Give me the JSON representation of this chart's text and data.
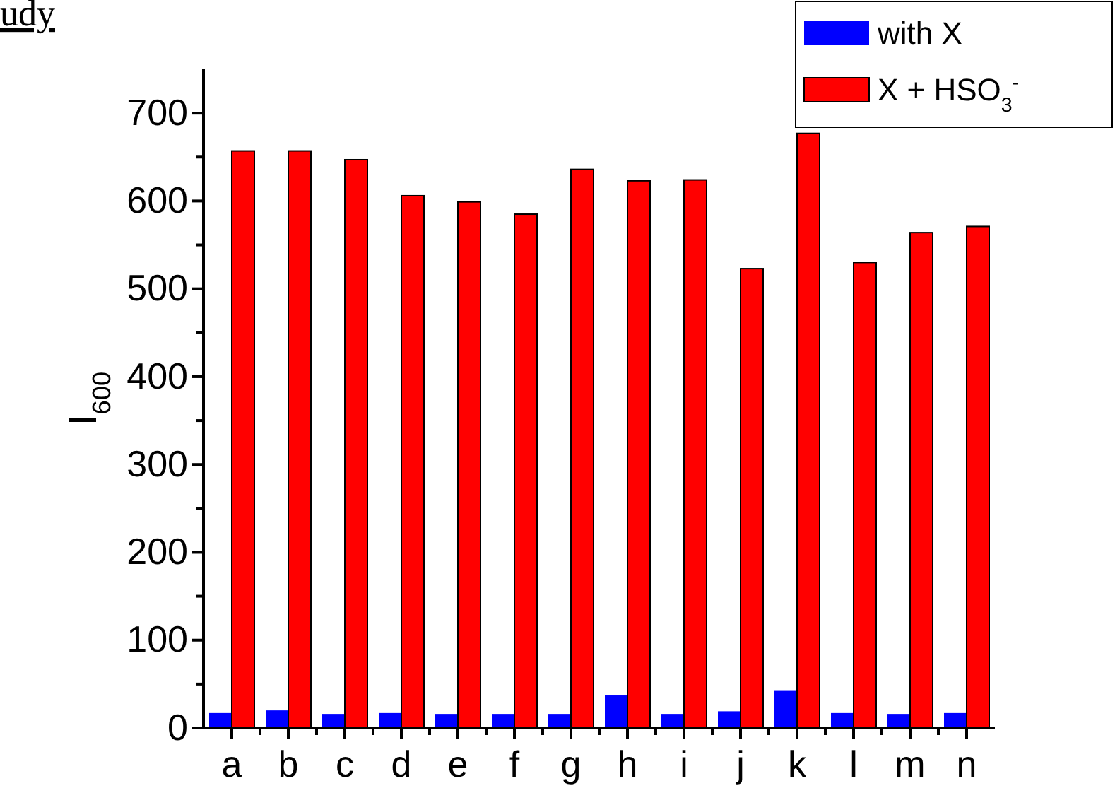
{
  "chart_data": {
    "type": "bar",
    "categories": [
      "a",
      "b",
      "c",
      "d",
      "e",
      "f",
      "g",
      "h",
      "i",
      "j",
      "k",
      "l",
      "m",
      "n"
    ],
    "series": [
      {
        "name": "with X",
        "color": "#0000ff",
        "values": [
          17,
          20,
          16,
          17,
          16,
          16,
          16,
          37,
          16,
          19,
          43,
          17,
          16,
          17
        ]
      },
      {
        "name": "X + HSO$_{3}$$^{-}$",
        "color": "#ff0000",
        "values": [
          657,
          657,
          647,
          606,
          599,
          585,
          636,
          623,
          624,
          523,
          677,
          530,
          564,
          571
        ]
      }
    ],
    "ylabel": "I$_{600}$",
    "ylim": [
      0,
      750
    ],
    "yticks": [
      0,
      100,
      200,
      300,
      400,
      500,
      600,
      700
    ],
    "legend": "top right",
    "grid": false,
    "annotations": [
      "udy"
    ]
  }
}
